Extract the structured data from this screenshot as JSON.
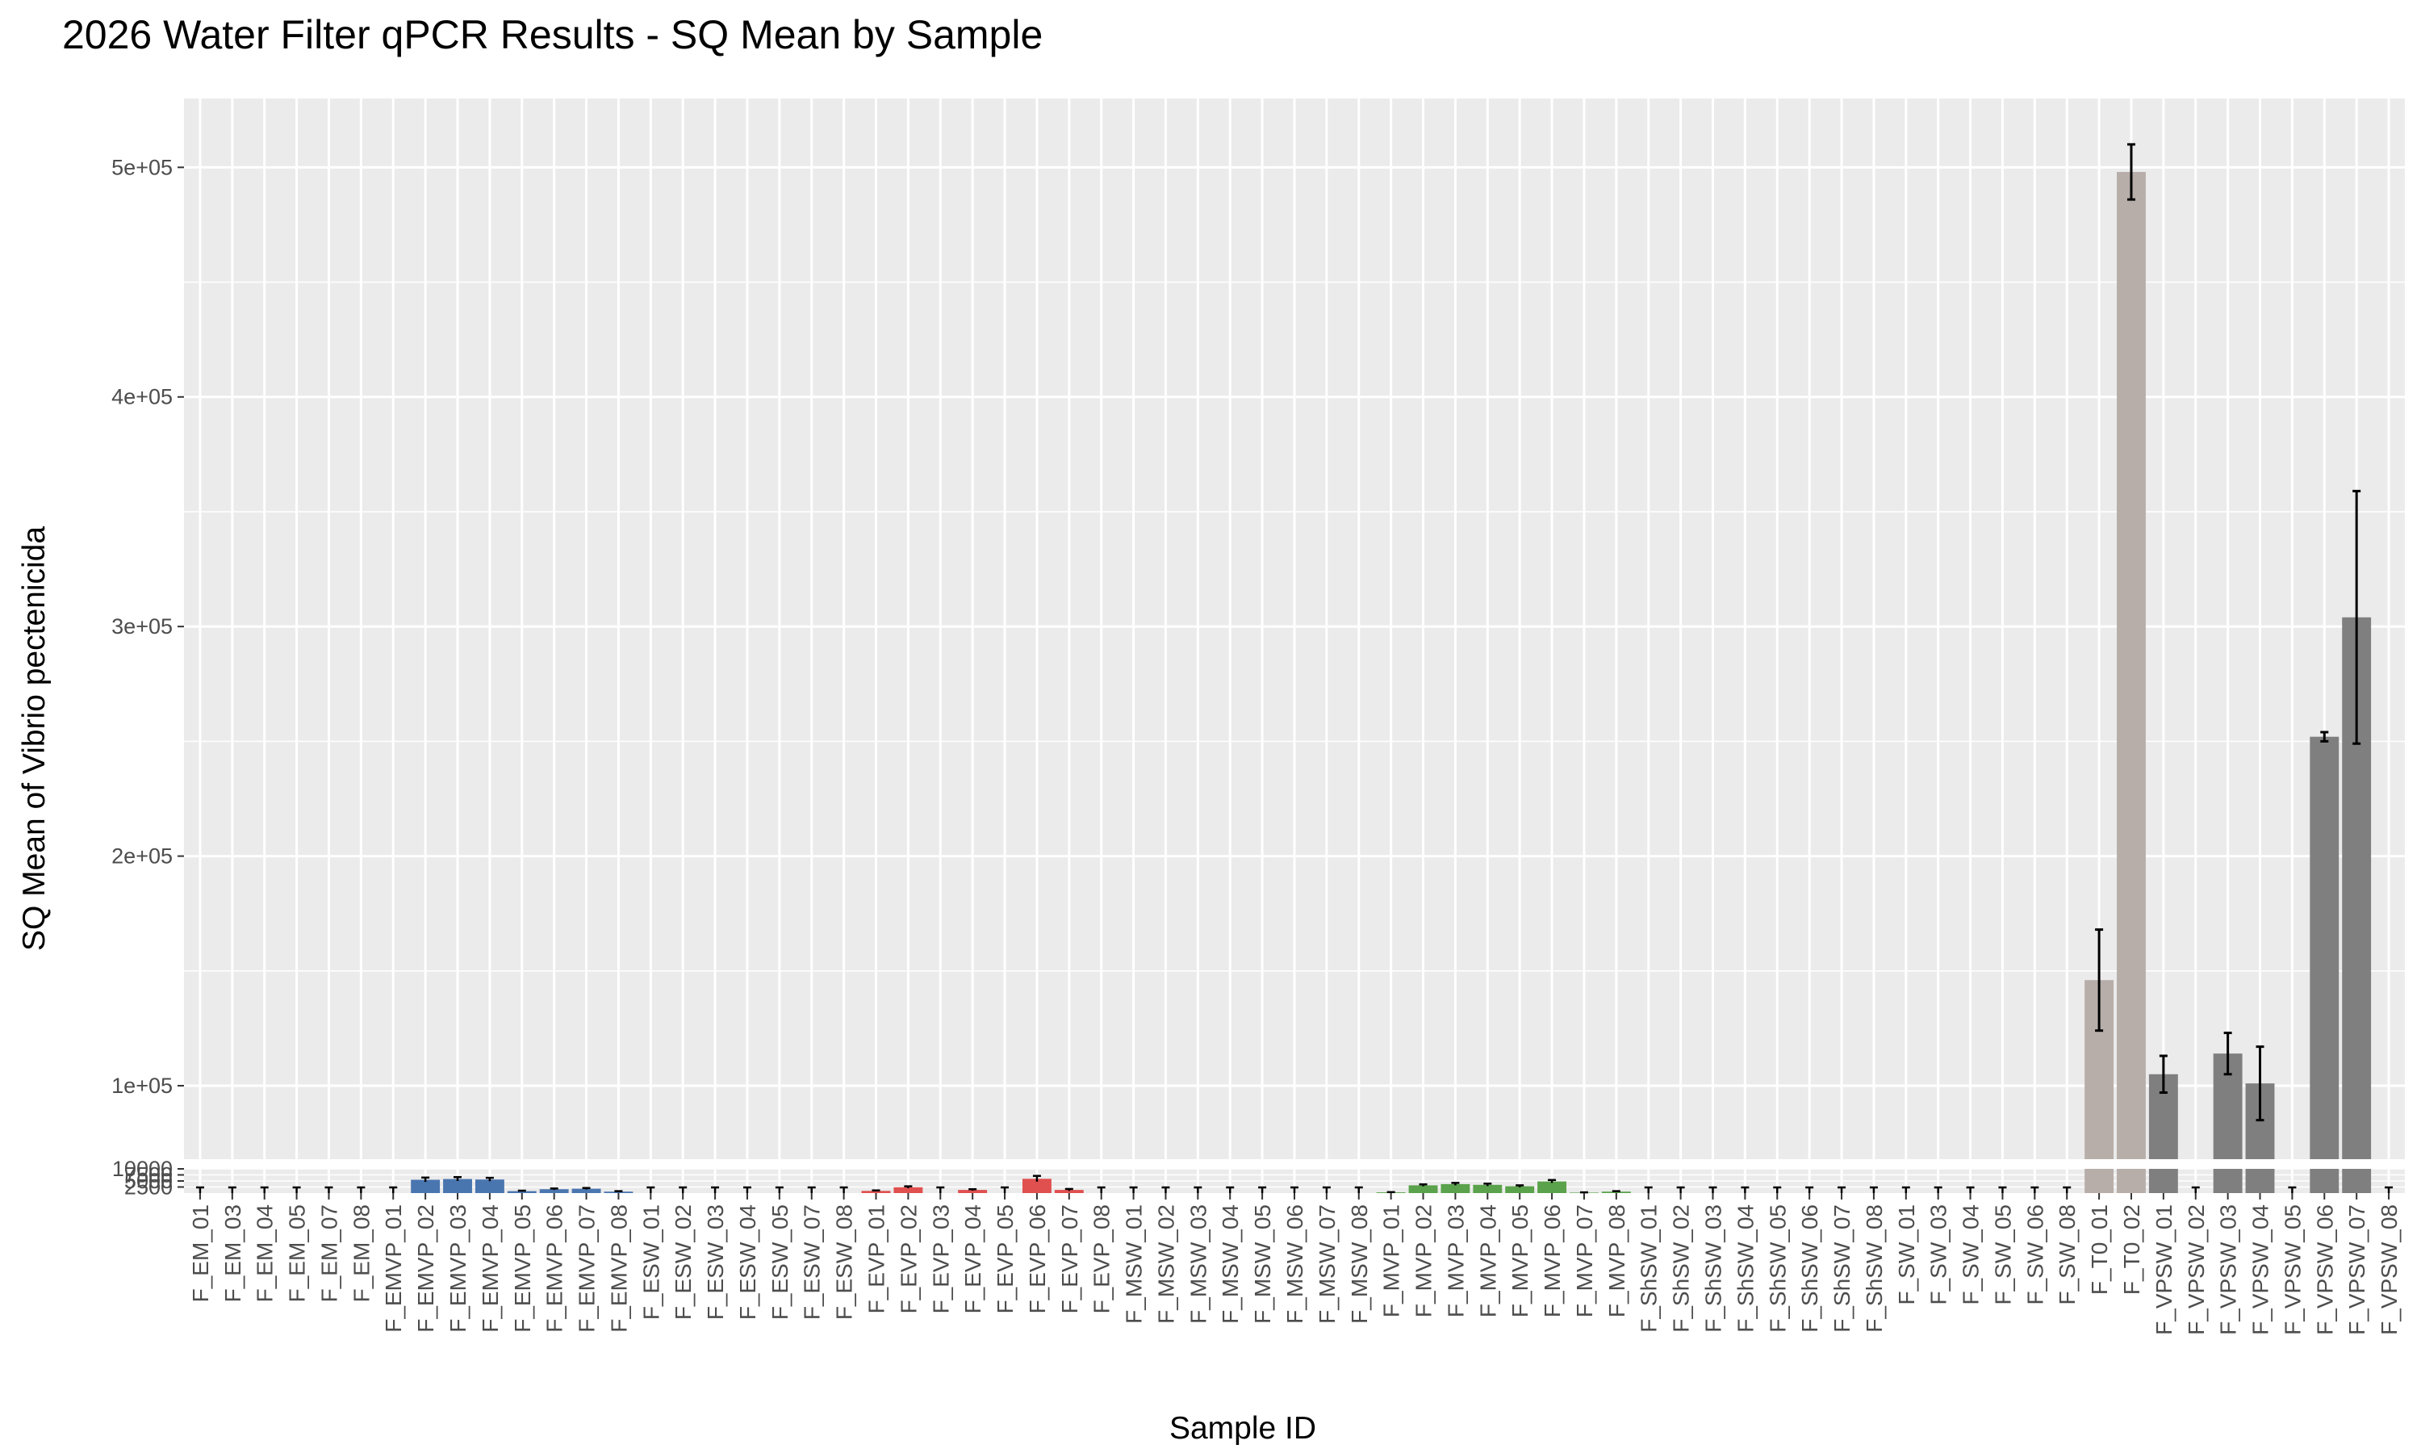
{
  "chart_data": {
    "type": "bar",
    "title": "2026 Water Filter qPCR Results - SQ Mean by Sample",
    "xlabel": "Sample ID",
    "ylabel": "SQ Mean of Vibrio pectenicida",
    "y_axis": "broken",
    "ylim_lower": [
      0,
      10000
    ],
    "ylim_upper": [
      68000,
      530000
    ],
    "yticks_lower": [
      "2500",
      "5000",
      "7500",
      "10000"
    ],
    "yticks_upper": [
      "1e+05",
      "2e+05",
      "3e+05",
      "4e+05",
      "5e+05"
    ],
    "grid": true,
    "legend": "none",
    "categories": [
      "F_EM_01",
      "F_EM_03",
      "F_EM_04",
      "F_EM_05",
      "F_EM_07",
      "F_EM_08",
      "F_EMVP_01",
      "F_EMVP_02",
      "F_EMVP_03",
      "F_EMVP_04",
      "F_EMVP_05",
      "F_EMVP_06",
      "F_EMVP_07",
      "F_EMVP_08",
      "F_ESW_01",
      "F_ESW_02",
      "F_ESW_03",
      "F_ESW_04",
      "F_ESW_05",
      "F_ESW_07",
      "F_ESW_08",
      "F_EVP_01",
      "F_EVP_02",
      "F_EVP_03",
      "F_EVP_04",
      "F_EVP_05",
      "F_EVP_06",
      "F_EVP_07",
      "F_EVP_08",
      "F_MSW_01",
      "F_MSW_02",
      "F_MSW_03",
      "F_MSW_04",
      "F_MSW_05",
      "F_MSW_06",
      "F_MSW_07",
      "F_MSW_08",
      "F_MVP_01",
      "F_MVP_02",
      "F_MVP_03",
      "F_MVP_04",
      "F_MVP_05",
      "F_MVP_06",
      "F_MVP_07",
      "F_MVP_08",
      "F_ShSW_01",
      "F_ShSW_02",
      "F_ShSW_03",
      "F_ShSW_04",
      "F_ShSW_05",
      "F_ShSW_06",
      "F_ShSW_07",
      "F_ShSW_08",
      "F_SW_01",
      "F_SW_03",
      "F_SW_04",
      "F_SW_05",
      "F_SW_06",
      "F_SW_08",
      "F_T0_01",
      "F_T0_02",
      "F_VPSW_01",
      "F_VPSW_02",
      "F_VPSW_03",
      "F_VPSW_04",
      "F_VPSW_05",
      "F_VPSW_06",
      "F_VPSW_07",
      "F_VPSW_08"
    ],
    "values": [
      0,
      0,
      0,
      0,
      0,
      0,
      0,
      5500,
      5800,
      5600,
      800,
      1600,
      1800,
      600,
      0,
      0,
      0,
      0,
      0,
      0,
      0,
      900,
      2400,
      0,
      1300,
      0,
      5900,
      1300,
      0,
      0,
      0,
      0,
      0,
      0,
      0,
      0,
      0,
      300,
      3200,
      3700,
      3400,
      2800,
      4800,
      200,
      600,
      0,
      0,
      0,
      0,
      0,
      0,
      0,
      0,
      0,
      0,
      0,
      0,
      0,
      0,
      146000,
      498000,
      105000,
      0,
      114000,
      101000,
      0,
      252000,
      304000,
      0
    ],
    "errors": [
      0,
      0,
      0,
      0,
      0,
      0,
      0,
      900,
      800,
      700,
      200,
      300,
      300,
      200,
      0,
      0,
      0,
      0,
      0,
      0,
      0,
      200,
      400,
      0,
      300,
      0,
      1200,
      400,
      0,
      0,
      0,
      0,
      0,
      0,
      0,
      0,
      0,
      100,
      400,
      500,
      500,
      400,
      600,
      100,
      200,
      0,
      0,
      0,
      0,
      0,
      0,
      0,
      0,
      0,
      0,
      0,
      0,
      0,
      0,
      22000,
      12000,
      8000,
      0,
      9000,
      16000,
      0,
      2000,
      55000,
      0
    ],
    "group_colors": {
      "EM": "#4a76b0",
      "EVP": "#e0504f",
      "MVP": "#5aa24b",
      "T0": "#b8aea9",
      "VPSW": "#7f7f7f",
      "neutral": "#7f7f7f"
    },
    "groups": [
      "EM",
      "EM",
      "EM",
      "EM",
      "EM",
      "EM",
      "EM",
      "EM",
      "EM",
      "EM",
      "EM",
      "EM",
      "EM",
      "EM",
      "neutral",
      "neutral",
      "neutral",
      "neutral",
      "neutral",
      "neutral",
      "neutral",
      "EVP",
      "EVP",
      "EVP",
      "EVP",
      "EVP",
      "EVP",
      "EVP",
      "EVP",
      "neutral",
      "neutral",
      "neutral",
      "neutral",
      "neutral",
      "neutral",
      "neutral",
      "neutral",
      "MVP",
      "MVP",
      "MVP",
      "MVP",
      "MVP",
      "MVP",
      "MVP",
      "MVP",
      "neutral",
      "neutral",
      "neutral",
      "neutral",
      "neutral",
      "neutral",
      "neutral",
      "neutral",
      "neutral",
      "neutral",
      "neutral",
      "neutral",
      "neutral",
      "neutral",
      "T0",
      "T0",
      "VPSW",
      "VPSW",
      "VPSW",
      "VPSW",
      "VPSW",
      "VPSW",
      "VPSW",
      "VPSW"
    ]
  }
}
